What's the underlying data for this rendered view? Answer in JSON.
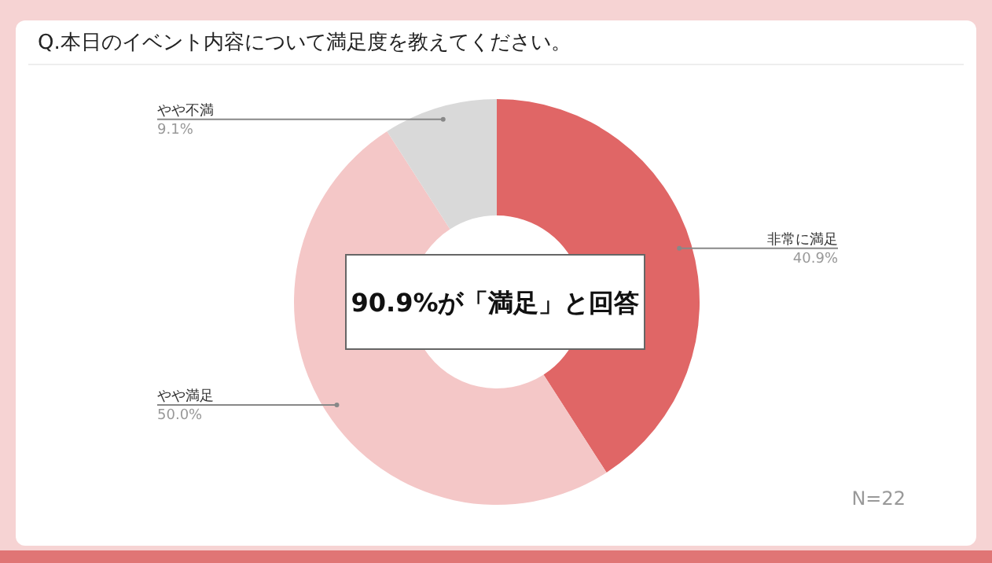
{
  "chart_data": {
    "type": "donut",
    "title": "Q.本日のイベント内容について満足度を教えてください。",
    "categories": [
      "非常に満足",
      "やや満足",
      "やや不満"
    ],
    "values": [
      40.9,
      50.0,
      9.1
    ],
    "value_labels": [
      "40.9%",
      "50.0%",
      "9.1%"
    ],
    "colors": [
      "#e06666",
      "#f4c7c7",
      "#d9d9d9"
    ],
    "annotations": [
      "90.9%が「満足」と回答",
      "N=22"
    ]
  }
}
